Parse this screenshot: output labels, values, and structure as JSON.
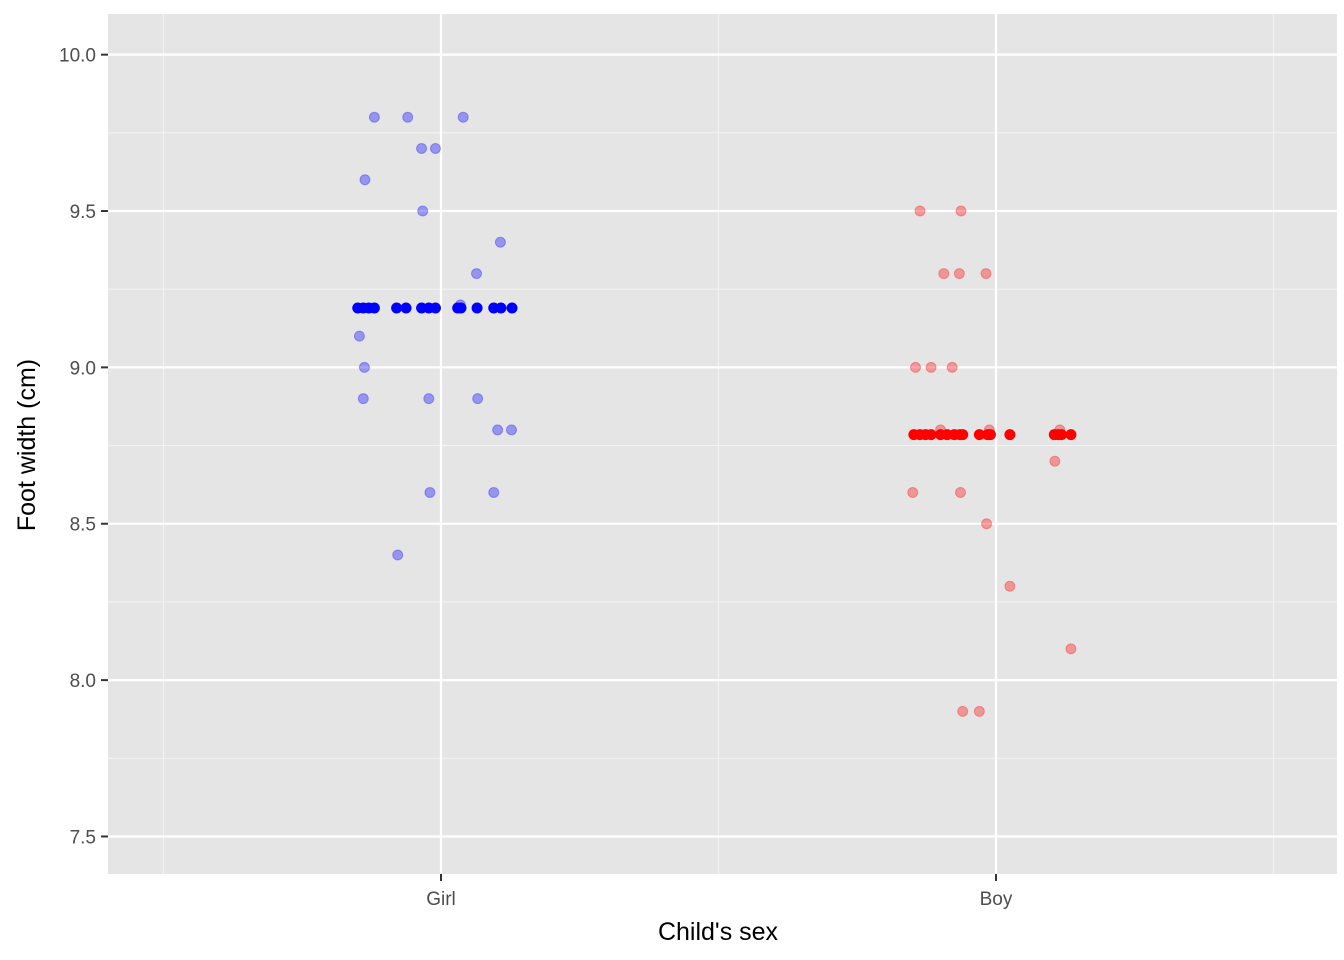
{
  "chart_data": {
    "type": "scatter",
    "xlabel": "Child's sex",
    "ylabel": "Foot width (cm)",
    "categories": [
      "Girl",
      "Boy"
    ],
    "ylim": [
      7.38,
      10.13
    ],
    "yticks": [
      "7.5",
      "8.0",
      "8.5",
      "9.0",
      "9.5",
      "10.0"
    ],
    "grid": true,
    "legend": "none",
    "series": [
      {
        "category": "Girl",
        "color": "#0000ff",
        "opacity": 0.35,
        "points": [
          {
            "x": -0.12,
            "y": 9.8
          },
          {
            "x": -0.06,
            "y": 9.8
          },
          {
            "x": 0.04,
            "y": 9.8
          },
          {
            "x": -0.035,
            "y": 9.7
          },
          {
            "x": -0.01,
            "y": 9.7
          },
          {
            "x": -0.137,
            "y": 9.6
          },
          {
            "x": -0.033,
            "y": 9.5
          },
          {
            "x": 0.107,
            "y": 9.4
          },
          {
            "x": 0.064,
            "y": 9.3
          },
          {
            "x": 0.035,
            "y": 9.2
          },
          {
            "x": -0.147,
            "y": 9.1
          },
          {
            "x": -0.138,
            "y": 9.0
          },
          {
            "x": -0.14,
            "y": 8.9
          },
          {
            "x": -0.022,
            "y": 8.9
          },
          {
            "x": 0.066,
            "y": 8.9
          },
          {
            "x": 0.102,
            "y": 8.8
          },
          {
            "x": 0.127,
            "y": 8.8
          },
          {
            "x": -0.02,
            "y": 8.6
          },
          {
            "x": 0.095,
            "y": 8.6
          },
          {
            "x": -0.078,
            "y": 8.4
          }
        ]
      },
      {
        "category": "Boy",
        "color": "#ff0000",
        "opacity": 0.35,
        "points": [
          {
            "x": -0.137,
            "y": 9.5
          },
          {
            "x": -0.063,
            "y": 9.5
          },
          {
            "x": -0.094,
            "y": 9.3
          },
          {
            "x": -0.066,
            "y": 9.3
          },
          {
            "x": -0.018,
            "y": 9.3
          },
          {
            "x": -0.145,
            "y": 9.0
          },
          {
            "x": -0.117,
            "y": 9.0
          },
          {
            "x": -0.079,
            "y": 9.0
          },
          {
            "x": -0.1,
            "y": 8.8
          },
          {
            "x": -0.012,
            "y": 8.8
          },
          {
            "x": 0.115,
            "y": 8.8
          },
          {
            "x": 0.106,
            "y": 8.7
          },
          {
            "x": -0.15,
            "y": 8.6
          },
          {
            "x": -0.064,
            "y": 8.6
          },
          {
            "x": -0.017,
            "y": 8.5
          },
          {
            "x": 0.025,
            "y": 8.3
          },
          {
            "x": 0.135,
            "y": 8.1
          },
          {
            "x": -0.06,
            "y": 7.9
          },
          {
            "x": -0.03,
            "y": 7.9
          }
        ]
      },
      {
        "category": "Girl",
        "name": "mean",
        "color": "#0000ff",
        "opacity": 1,
        "y": 9.19,
        "x_offsets": [
          -0.15,
          -0.14,
          -0.13,
          -0.12,
          -0.08,
          -0.063,
          -0.035,
          -0.022,
          -0.01,
          0.03,
          0.036,
          0.065,
          0.095,
          0.108,
          0.128
        ]
      },
      {
        "category": "Boy",
        "name": "mean",
        "color": "#ff0000",
        "opacity": 1,
        "y": 8.785,
        "x_offsets": [
          -0.148,
          -0.137,
          -0.127,
          -0.117,
          -0.1,
          -0.088,
          -0.075,
          -0.065,
          -0.06,
          -0.03,
          -0.015,
          -0.01,
          0.025,
          0.105,
          0.112,
          0.118,
          0.135
        ]
      }
    ]
  }
}
